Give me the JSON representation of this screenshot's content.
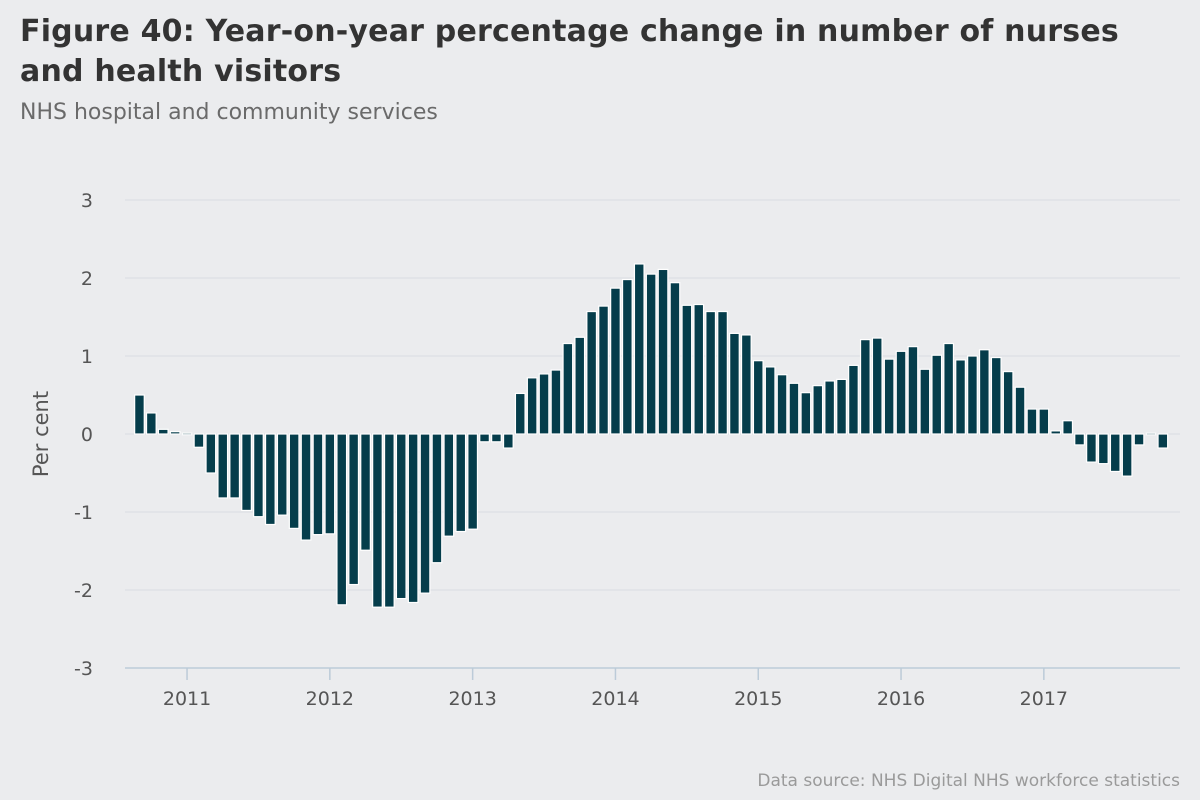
{
  "chart_data": {
    "type": "bar",
    "title": "Figure 40: Year-on-year percentage change in number of nurses and health visitors",
    "subtitle": "NHS hospital and community services",
    "ylabel": "Per cent",
    "xlabel": "",
    "ylim": [
      -3,
      3
    ],
    "yticks": [
      3,
      2,
      1,
      0,
      -1,
      -2,
      -3
    ],
    "xticks": [
      {
        "label": "2011",
        "pos": 4.5
      },
      {
        "label": "2012",
        "pos": 16.5
      },
      {
        "label": "2013",
        "pos": 28.5
      },
      {
        "label": "2014",
        "pos": 40.5
      },
      {
        "label": "2015",
        "pos": 52.5
      },
      {
        "label": "2016",
        "pos": 64.5
      },
      {
        "label": "2017",
        "pos": 76.5
      }
    ],
    "bar_color": "#053d4b",
    "start": "Aug 2010",
    "series": [
      {
        "name": "Year-on-year change (%)",
        "values": [
          0.5,
          0.27,
          0.06,
          0.03,
          0.01,
          -0.17,
          -0.5,
          -0.82,
          -0.82,
          -0.98,
          -1.06,
          -1.16,
          -1.04,
          -1.21,
          -1.36,
          -1.29,
          -1.28,
          -2.19,
          -1.93,
          -1.49,
          -2.22,
          -2.22,
          -2.11,
          -2.16,
          -2.04,
          -1.65,
          -1.31,
          -1.25,
          -1.22,
          -0.1,
          -0.1,
          -0.18,
          0.52,
          0.72,
          0.77,
          0.82,
          1.16,
          1.24,
          1.57,
          1.64,
          1.87,
          1.98,
          2.18,
          2.05,
          2.11,
          1.94,
          1.65,
          1.66,
          1.57,
          1.57,
          1.29,
          1.27,
          0.94,
          0.86,
          0.76,
          0.65,
          0.53,
          0.62,
          0.68,
          0.7,
          0.88,
          1.21,
          1.23,
          0.96,
          1.06,
          1.12,
          0.83,
          1.01,
          1.16,
          0.95,
          1.0,
          1.08,
          0.98,
          0.8,
          0.6,
          0.32,
          0.32,
          0.04,
          0.17,
          -0.14,
          -0.36,
          -0.38,
          -0.48,
          -0.54,
          -0.14,
          0.0,
          -0.18
        ]
      }
    ]
  },
  "source": "Data source: NHS Digital NHS workforce statistics"
}
